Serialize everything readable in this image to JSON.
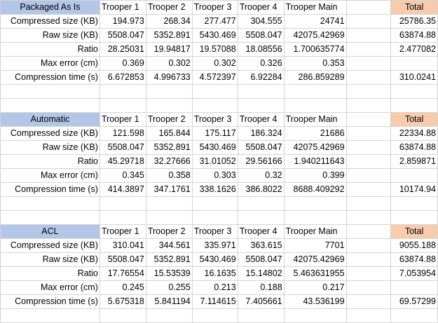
{
  "colors": {
    "section_header": "#b4c6e7",
    "total_header": "#f8cbad",
    "gridline": "#d4d4d4"
  },
  "columns": [
    "Trooper 1",
    "Trooper 2",
    "Trooper 3",
    "Trooper 4",
    "Trooper Main"
  ],
  "total_label": "Total",
  "sections": [
    {
      "title": "Packaged As Is",
      "rows": [
        {
          "label": "Compressed size (KB)",
          "values": [
            "194.973",
            "268.34",
            "277.477",
            "304.555",
            "24741"
          ],
          "total": "25786.35"
        },
        {
          "label": "Raw size (KB)",
          "values": [
            "5508.047",
            "5352.891",
            "5430.469",
            "5508.047",
            "42075.42969"
          ],
          "total": "63874.88"
        },
        {
          "label": "Ratio",
          "values": [
            "28.25031",
            "19.94817",
            "19.57088",
            "18.08556",
            "1.700635774"
          ],
          "total": "2.477082"
        },
        {
          "label": "Max error (cm)",
          "values": [
            "0.369",
            "0.302",
            "0.302",
            "0.326",
            "0.353"
          ],
          "total": ""
        },
        {
          "label": "Compression time (s)",
          "values": [
            "6.672853",
            "4.996733",
            "4.572397",
            "6.92284",
            "286.859289"
          ],
          "total": "310.0241"
        }
      ]
    },
    {
      "title": "Automatic",
      "rows": [
        {
          "label": "Compressed size (KB)",
          "values": [
            "121.598",
            "165.844",
            "175.117",
            "186.324",
            "21686"
          ],
          "total": "22334.88"
        },
        {
          "label": "Raw size (KB)",
          "values": [
            "5508.047",
            "5352.891",
            "5430.469",
            "5508.047",
            "42075.42969"
          ],
          "total": "63874.88"
        },
        {
          "label": "Ratio",
          "values": [
            "45.29718",
            "32.27666",
            "31.01052",
            "29.56166",
            "1.940211643"
          ],
          "total": "2.859871"
        },
        {
          "label": "Max error (cm)",
          "values": [
            "0.345",
            "0.358",
            "0.303",
            "0.32",
            "0.399"
          ],
          "total": ""
        },
        {
          "label": "Compression time (s)",
          "values": [
            "414.3897",
            "347.1761",
            "338.1626",
            "386.8022",
            "8688.409292"
          ],
          "total": "10174.94"
        }
      ]
    },
    {
      "title": "ACL",
      "rows": [
        {
          "label": "Compressed size (KB)",
          "values": [
            "310.041",
            "344.561",
            "335.971",
            "363.615",
            "7701"
          ],
          "total": "9055.188"
        },
        {
          "label": "Raw size (KB)",
          "values": [
            "5508.047",
            "5352.891",
            "5430.469",
            "5508.047",
            "42075.42969"
          ],
          "total": "63874.88"
        },
        {
          "label": "Ratio",
          "values": [
            "17.76554",
            "15.53539",
            "16.1635",
            "15.14802",
            "5.463631955"
          ],
          "total": "7.053954"
        },
        {
          "label": "Max error (cm)",
          "values": [
            "0.245",
            "0.255",
            "0.213",
            "0.188",
            "0.217"
          ],
          "total": ""
        },
        {
          "label": "Compression time (s)",
          "values": [
            "5.675318",
            "5.841194",
            "7.114615",
            "7.405661",
            "43.536199"
          ],
          "total": "69.57299"
        }
      ]
    }
  ]
}
